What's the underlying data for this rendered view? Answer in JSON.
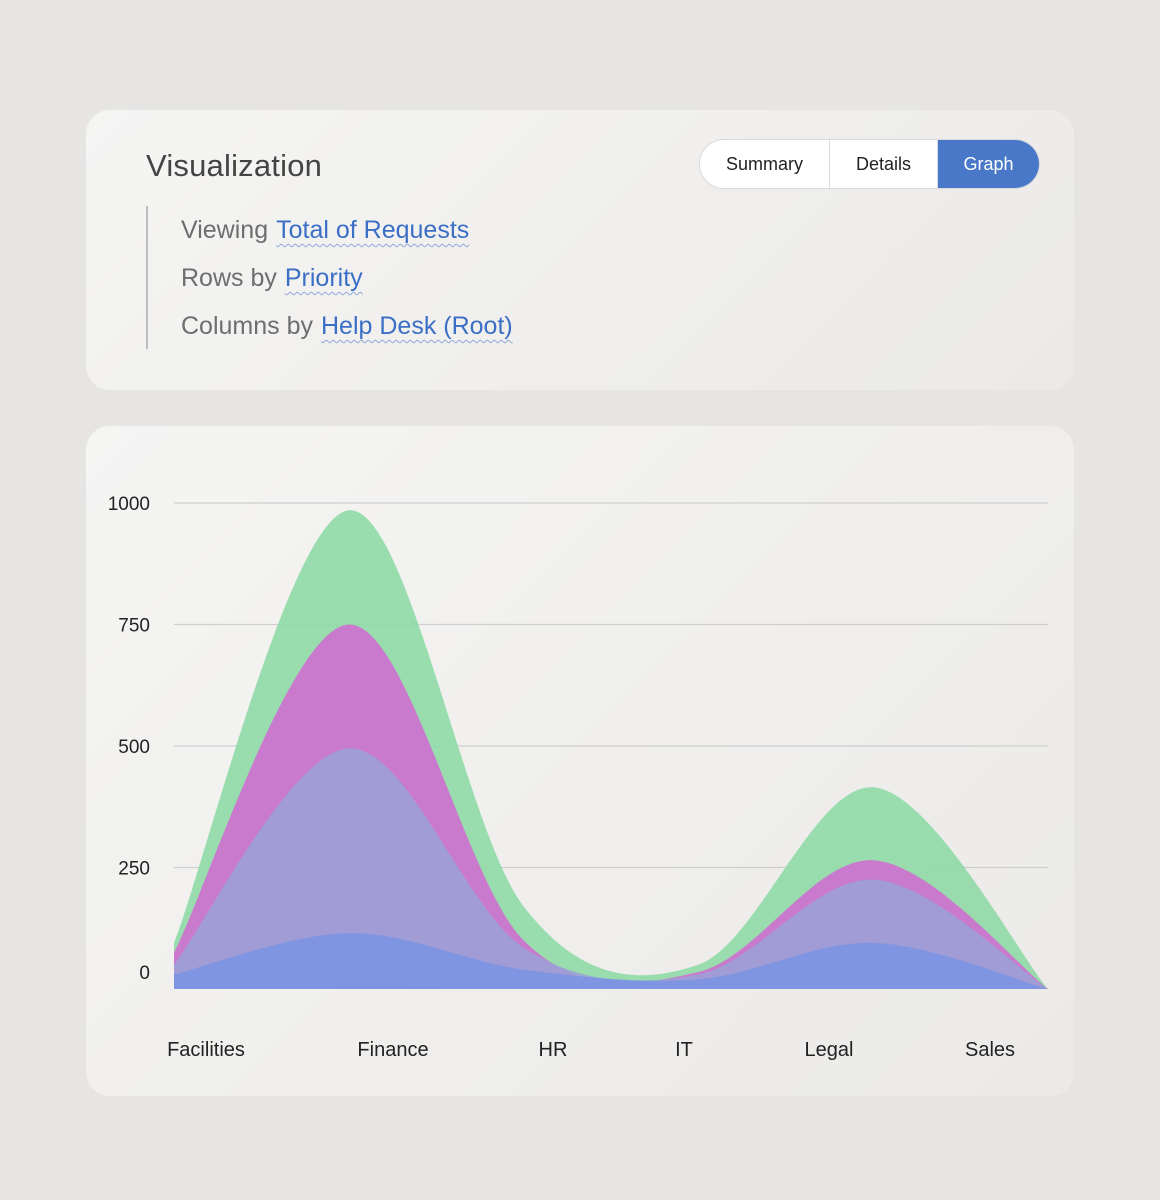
{
  "header": {
    "title": "Visualization",
    "tabs": [
      {
        "label": "Summary",
        "active": false
      },
      {
        "label": "Details",
        "active": false
      },
      {
        "label": "Graph",
        "active": true
      }
    ]
  },
  "description": {
    "viewing_prefix": "Viewing",
    "viewing_value": "Total of Requests",
    "rows_prefix": "Rows by",
    "rows_value": "Priority",
    "columns_prefix": "Columns by",
    "columns_value": "Help Desk (Root)"
  },
  "colors": {
    "accent": "#4a78c8",
    "link": "#3b6fc6"
  },
  "chart_data": {
    "type": "area",
    "stacked": true,
    "smooth": true,
    "categories": [
      "Facilities",
      "Finance",
      "HR",
      "IT",
      "Legal",
      "Sales"
    ],
    "y_ticks": [
      0,
      250,
      500,
      750,
      1000
    ],
    "ylim": [
      0,
      1000
    ],
    "grid": true,
    "series": [
      {
        "values": [
          30,
          115,
          40,
          20,
          95,
          0
        ],
        "color": "#7b95e2"
      },
      {
        "values": [
          20,
          380,
          45,
          10,
          130,
          0
        ],
        "color": "#9ca0d6"
      },
      {
        "values": [
          25,
          255,
          15,
          5,
          40,
          0
        ],
        "color": "#cf6fcf"
      },
      {
        "values": [
          20,
          235,
          70,
          15,
          150,
          0
        ],
        "color": "#8fd9a6"
      }
    ]
  }
}
